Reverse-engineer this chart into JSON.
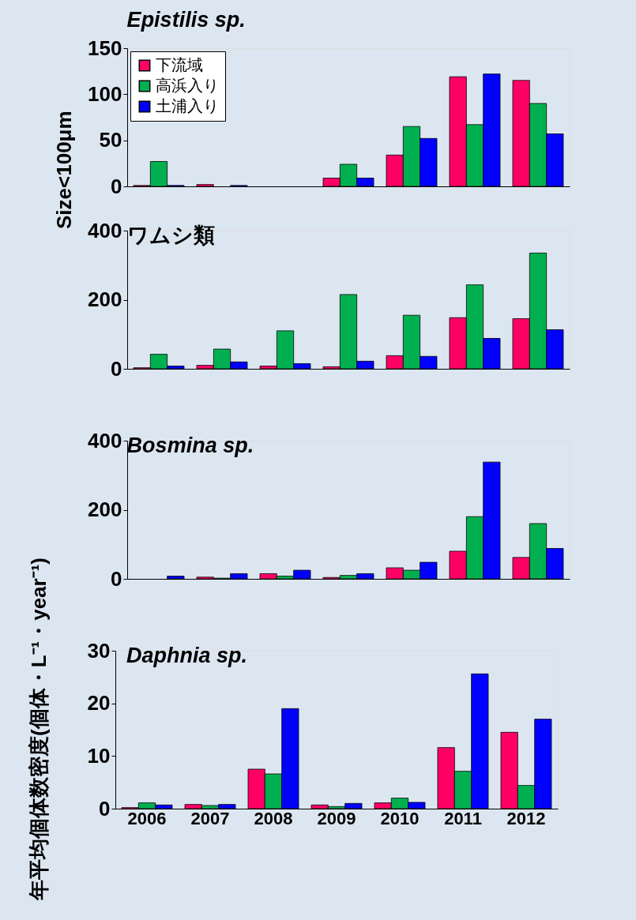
{
  "chart_data": [
    {
      "type": "bar",
      "title": "Epistilis sp.",
      "annotations": [
        "Size<100μm"
      ],
      "categories": [
        "2006",
        "2007",
        "2008",
        "2009",
        "2010",
        "2011",
        "2012"
      ],
      "ylim": [
        0,
        150
      ],
      "yticks": [
        0,
        50,
        100,
        150
      ],
      "grid": false,
      "legend": "top left",
      "tick_labels": "y",
      "series": [
        {
          "name": "下流域",
          "color": "#ff0066",
          "values": [
            1,
            2,
            null,
            9,
            34,
            119,
            115
          ]
        },
        {
          "name": "高浜入り",
          "color": "#00b050",
          "values": [
            27,
            null,
            null,
            24,
            65,
            67,
            90
          ]
        },
        {
          "name": "土浦入り",
          "color": "#0000ff",
          "values": [
            1,
            1,
            null,
            9,
            52,
            122,
            57
          ]
        }
      ]
    },
    {
      "type": "bar",
      "title": "ワムシ類",
      "categories": [
        "2006",
        "2007",
        "2008",
        "2009",
        "2010",
        "2011",
        "2012"
      ],
      "ylim": [
        0,
        400
      ],
      "yticks": [
        0,
        200,
        400
      ],
      "grid": false,
      "tick_labels": "y",
      "series": [
        {
          "color": "#ff0066",
          "values": [
            3,
            10,
            8,
            6,
            38,
            148,
            145
          ]
        },
        {
          "color": "#00b050",
          "values": [
            42,
            57,
            110,
            215,
            155,
            243,
            335
          ]
        },
        {
          "color": "#0000ff",
          "values": [
            8,
            20,
            15,
            22,
            36,
            88,
            113
          ]
        }
      ]
    },
    {
      "type": "bar",
      "title": "Bosmina   sp.",
      "ylabel": "年平均個体数密度(個体・L⁻¹・year⁻¹)",
      "categories": [
        "2006",
        "2007",
        "2008",
        "2009",
        "2010",
        "2011",
        "2012"
      ],
      "ylim": [
        0,
        400
      ],
      "yticks": [
        0,
        200,
        400
      ],
      "grid": false,
      "tick_labels": "y",
      "series": [
        {
          "color": "#ff0066",
          "values": [
            null,
            5,
            15,
            4,
            32,
            80,
            62
          ]
        },
        {
          "color": "#00b050",
          "values": [
            null,
            2,
            8,
            10,
            25,
            180,
            160
          ]
        },
        {
          "color": "#0000ff",
          "values": [
            8,
            15,
            25,
            15,
            48,
            338,
            88
          ]
        }
      ]
    },
    {
      "type": "bar",
      "title": "Daphnia  sp.",
      "categories": [
        "2006",
        "2007",
        "2008",
        "2009",
        "2010",
        "2011",
        "2012"
      ],
      "ylim": [
        0,
        30
      ],
      "yticks": [
        0,
        10,
        20,
        30
      ],
      "grid": false,
      "series": [
        {
          "color": "#ff0066",
          "values": [
            0.2,
            0.8,
            7.5,
            0.7,
            1.1,
            11.6,
            14.5
          ]
        },
        {
          "color": "#00b050",
          "values": [
            1.1,
            0.6,
            6.6,
            0.4,
            2.0,
            7.1,
            4.4
          ]
        },
        {
          "color": "#0000ff",
          "values": [
            0.7,
            0.8,
            19.0,
            1.0,
            1.2,
            25.6,
            17.0
          ]
        }
      ]
    }
  ]
}
